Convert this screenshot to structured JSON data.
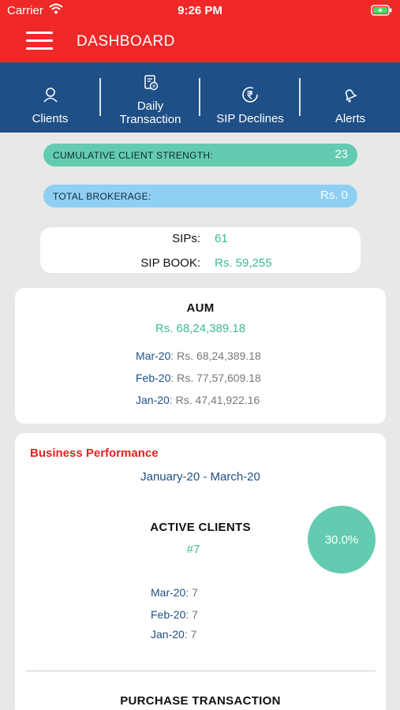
{
  "status_bar": {
    "carrier": "Carrier",
    "time": "9:26 PM"
  },
  "header": {
    "title": "DASHBOARD"
  },
  "tabs": [
    {
      "label_line1": "Clients",
      "label_line2": "",
      "icon": "user-icon"
    },
    {
      "label_line1": "Daily",
      "label_line2": "Transaction",
      "icon": "document-icon"
    },
    {
      "label_line1": "SIP Declines",
      "label_line2": "",
      "icon": "rupee-refresh-icon"
    },
    {
      "label_line1": "Alerts",
      "label_line2": "",
      "icon": "bell-icon"
    }
  ],
  "summary": {
    "client_strength_label": "CUMULATIVE CLIENT STRENGTH:",
    "client_strength_value": "23",
    "brokerage_label": "TOTAL BROKERAGE:",
    "brokerage_value": "Rs. 0"
  },
  "sip": {
    "sips_label": "SIPs:",
    "sips_value": "61",
    "book_label": "SIP BOOK:",
    "book_value": "Rs. 59,255"
  },
  "aum": {
    "title": "AUM",
    "total": "Rs. 68,24,389.18",
    "months": [
      {
        "month": "Mar-20",
        "value": ": Rs. 68,24,389.18"
      },
      {
        "month": "Feb-20",
        "value": ": Rs. 77,57,609.18"
      },
      {
        "month": "Jan-20",
        "value": ": Rs. 47,41,922.16"
      }
    ]
  },
  "performance": {
    "title": "Business Performance",
    "range": "January-20 - March-20",
    "active_clients_title": "ACTIVE CLIENTS",
    "active_clients_count": "#7",
    "percent": "30.0%",
    "months": [
      {
        "month": "Mar-20",
        "value": ": 7"
      },
      {
        "month": "Feb-20",
        "value": ": 7"
      },
      {
        "month": "Jan-20",
        "value": ": 7"
      }
    ],
    "purchase_title": "PURCHASE TRANSACTION"
  },
  "colors": {
    "header_red": "#f02828",
    "tab_blue": "#1e4f86",
    "accent_green": "#3dbb8f",
    "pill_green": "#63ccb0",
    "pill_blue": "#8fcff3"
  }
}
